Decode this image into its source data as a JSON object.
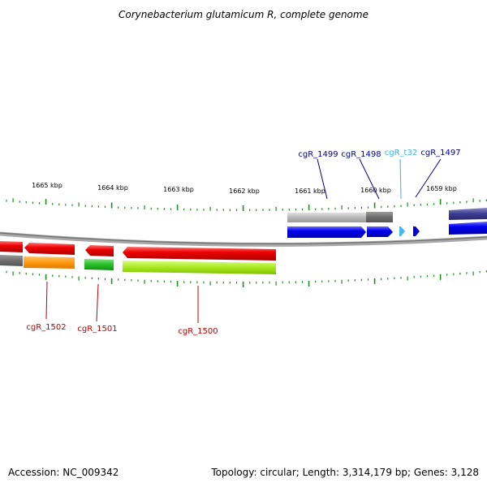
{
  "title": "Corynebacterium glutamicum R, complete genome",
  "footer": {
    "accession": "Accession: NC_009342",
    "stats": "Topology: circular; Length: 3,314,179 bp; Genes: 3,128"
  },
  "scale_labels": [
    "1665 kbp",
    "1664 kbp",
    "1663 kbp",
    "1662 kbp",
    "1661 kbp",
    "1660 kbp",
    "1659 kbp"
  ],
  "genes": {
    "top": [
      {
        "label": "cgR_1499",
        "color": "#00008b"
      },
      {
        "label": "cgR_1498",
        "color": "#00008b"
      },
      {
        "label": "cgR_t32",
        "color": "#3cb4e6"
      },
      {
        "label": "cgR_1497",
        "color": "#00008b"
      }
    ],
    "bottom": [
      {
        "label": "cgR_1502",
        "color": "#c00000"
      },
      {
        "label": "cgR_1501",
        "color": "#c00000"
      },
      {
        "label": "cgR_1500",
        "color": "#c00000"
      }
    ]
  },
  "colors": {
    "forward_strand": "#0000e6",
    "reverse_strand": "#ee0000",
    "tick": "#228b22",
    "backbone": "#808080"
  }
}
